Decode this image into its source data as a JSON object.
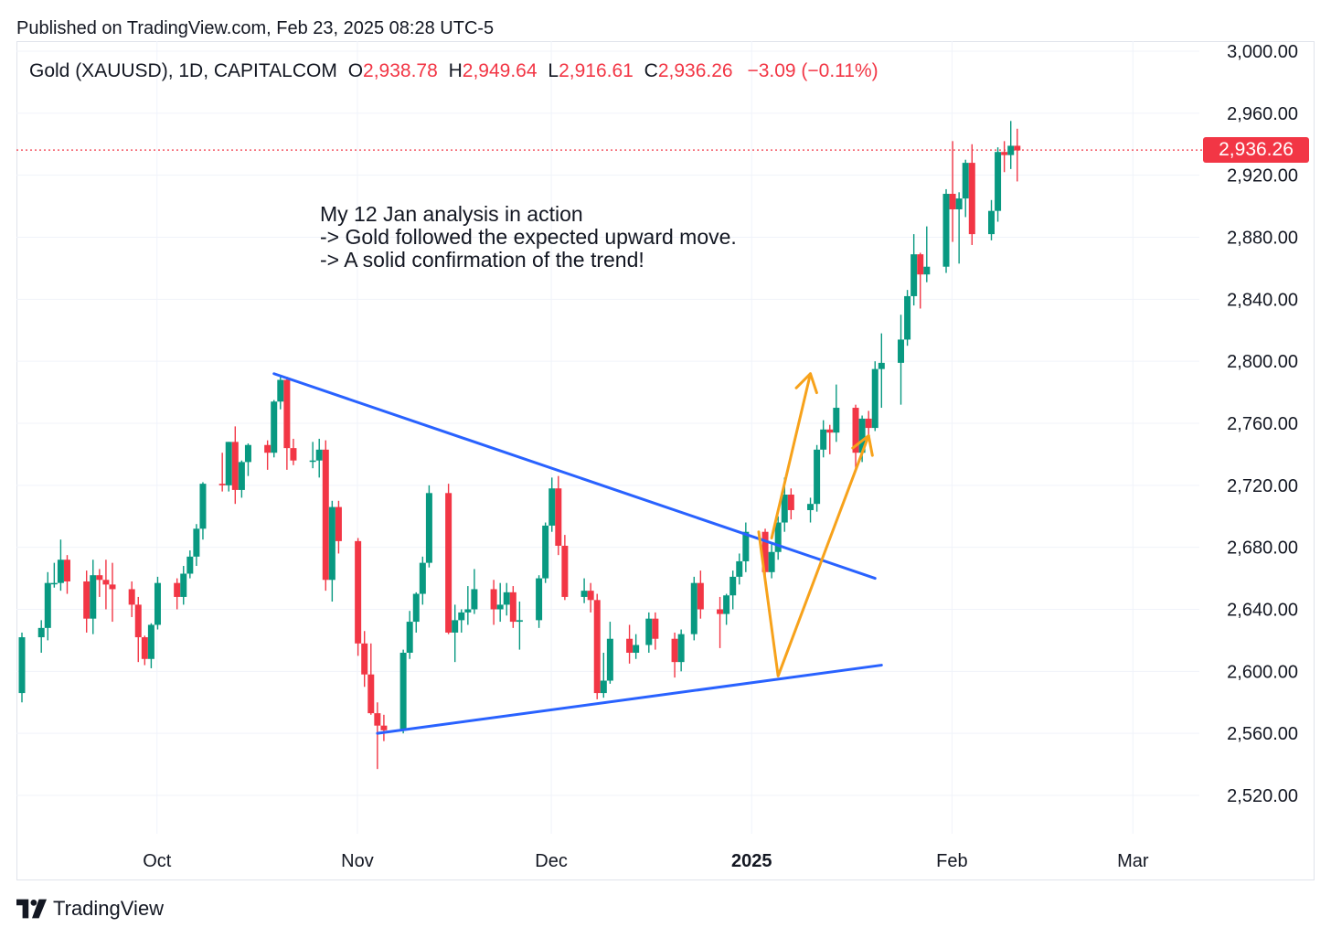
{
  "header": {
    "published": "Published on TradingView.com, Feb 23, 2025 08:28 UTC-5"
  },
  "legend": {
    "symbol": "Gold (XAUUSD), 1D, CAPITALCOM",
    "open_key": "O",
    "open": "2,938.78",
    "high_key": "H",
    "high": "2,949.64",
    "low_key": "L",
    "low": "2,916.61",
    "close_key": "C",
    "close": "2,936.26",
    "change": "−3.09 (−0.11%)"
  },
  "annotation": {
    "line1": "My 12 Jan analysis in action",
    "line2": "-> Gold followed the expected upward move.",
    "line3": "-> A solid confirmation of the trend!"
  },
  "footer": {
    "brand": "TradingView"
  },
  "colors": {
    "up": "#089981",
    "down": "#f23645",
    "trendline": "#2962ff",
    "arrow": "#f7a21b",
    "grid": "#f0f3fa"
  },
  "chart_data": {
    "type": "candlestick",
    "last_price": 2936.26,
    "last_price_label": "2,936.26",
    "y_axis": {
      "range": [
        2500,
        3000
      ],
      "ticks": [
        2520,
        2560,
        2600,
        2640,
        2680,
        2720,
        2760,
        2800,
        2840,
        2880,
        2920,
        2960,
        3000
      ],
      "tick_labels": [
        "2,520.00",
        "2,560.00",
        "2,600.00",
        "2,640.00",
        "2,680.00",
        "2,720.00",
        "2,760.00",
        "2,800.00",
        "2,840.00",
        "2,880.00",
        "2,920.00",
        "2,960.00",
        "3,000.00"
      ]
    },
    "x_axis": {
      "range": [
        "2024-09-20",
        "2025-03-18"
      ],
      "ticks": [
        {
          "date": "2024-10-01",
          "label": "Oct",
          "bold": false
        },
        {
          "date": "2024-11-01",
          "label": "Nov",
          "bold": false
        },
        {
          "date": "2024-12-01",
          "label": "Dec",
          "bold": false
        },
        {
          "date": "2025-01-01",
          "label": "2025",
          "bold": true
        },
        {
          "date": "2025-02-01",
          "label": "Feb",
          "bold": false
        },
        {
          "date": "2025-03-01",
          "label": "Mar",
          "bold": false
        }
      ]
    },
    "grid": true,
    "candles": [
      {
        "date": "2024-09-20",
        "o": 2586,
        "h": 2625,
        "l": 2580,
        "c": 2622
      },
      {
        "date": "2024-09-23",
        "o": 2622,
        "h": 2633,
        "l": 2612,
        "c": 2628
      },
      {
        "date": "2024-09-24",
        "o": 2628,
        "h": 2664,
        "l": 2620,
        "c": 2657
      },
      {
        "date": "2024-09-25",
        "o": 2657,
        "h": 2670,
        "l": 2654,
        "c": 2657
      },
      {
        "date": "2024-09-26",
        "o": 2657,
        "h": 2685,
        "l": 2652,
        "c": 2672
      },
      {
        "date": "2024-09-27",
        "o": 2672,
        "h": 2675,
        "l": 2650,
        "c": 2658
      },
      {
        "date": "2024-09-30",
        "o": 2658,
        "h": 2665,
        "l": 2625,
        "c": 2634
      },
      {
        "date": "2024-10-01",
        "o": 2634,
        "h": 2672,
        "l": 2624,
        "c": 2662
      },
      {
        "date": "2024-10-02",
        "o": 2662,
        "h": 2666,
        "l": 2648,
        "c": 2659
      },
      {
        "date": "2024-10-03",
        "o": 2659,
        "h": 2672,
        "l": 2640,
        "c": 2656
      },
      {
        "date": "2024-10-04",
        "o": 2656,
        "h": 2670,
        "l": 2632,
        "c": 2653
      },
      {
        "date": "2024-10-07",
        "o": 2653,
        "h": 2658,
        "l": 2635,
        "c": 2643
      },
      {
        "date": "2024-10-08",
        "o": 2643,
        "h": 2648,
        "l": 2606,
        "c": 2622
      },
      {
        "date": "2024-10-09",
        "o": 2622,
        "h": 2623,
        "l": 2604,
        "c": 2608
      },
      {
        "date": "2024-10-10",
        "o": 2608,
        "h": 2631,
        "l": 2602,
        "c": 2630
      },
      {
        "date": "2024-10-11",
        "o": 2630,
        "h": 2661,
        "l": 2627,
        "c": 2657
      },
      {
        "date": "2024-10-14",
        "o": 2657,
        "h": 2660,
        "l": 2640,
        "c": 2648
      },
      {
        "date": "2024-10-15",
        "o": 2648,
        "h": 2668,
        "l": 2643,
        "c": 2663
      },
      {
        "date": "2024-10-16",
        "o": 2663,
        "h": 2678,
        "l": 2660,
        "c": 2674
      },
      {
        "date": "2024-10-17",
        "o": 2674,
        "h": 2695,
        "l": 2668,
        "c": 2692
      },
      {
        "date": "2024-10-18",
        "o": 2692,
        "h": 2722,
        "l": 2685,
        "c": 2721
      },
      {
        "date": "2024-10-21",
        "o": 2721,
        "h": 2741,
        "l": 2716,
        "c": 2720
      },
      {
        "date": "2024-10-22",
        "o": 2720,
        "h": 2748,
        "l": 2716,
        "c": 2748
      },
      {
        "date": "2024-10-23",
        "o": 2748,
        "h": 2758,
        "l": 2708,
        "c": 2717
      },
      {
        "date": "2024-10-24",
        "o": 2717,
        "h": 2736,
        "l": 2712,
        "c": 2735
      },
      {
        "date": "2024-10-25",
        "o": 2735,
        "h": 2747,
        "l": 2726,
        "c": 2746
      },
      {
        "date": "2024-10-28",
        "o": 2746,
        "h": 2749,
        "l": 2730,
        "c": 2741
      },
      {
        "date": "2024-10-29",
        "o": 2741,
        "h": 2775,
        "l": 2738,
        "c": 2774
      },
      {
        "date": "2024-10-30",
        "o": 2774,
        "h": 2790,
        "l": 2769,
        "c": 2788
      },
      {
        "date": "2024-10-31",
        "o": 2788,
        "h": 2790,
        "l": 2730,
        "c": 2744
      },
      {
        "date": "2024-11-01",
        "o": 2744,
        "h": 2750,
        "l": 2733,
        "c": 2736
      },
      {
        "date": "2024-11-04",
        "o": 2736,
        "h": 2748,
        "l": 2731,
        "c": 2736
      },
      {
        "date": "2024-11-05",
        "o": 2736,
        "h": 2750,
        "l": 2725,
        "c": 2743
      },
      {
        "date": "2024-11-06",
        "o": 2743,
        "h": 2749,
        "l": 2652,
        "c": 2659
      },
      {
        "date": "2024-11-07",
        "o": 2659,
        "h": 2710,
        "l": 2645,
        "c": 2706
      },
      {
        "date": "2024-11-08",
        "o": 2706,
        "h": 2710,
        "l": 2676,
        "c": 2684
      },
      {
        "date": "2024-11-11",
        "o": 2684,
        "h": 2686,
        "l": 2610,
        "c": 2618
      },
      {
        "date": "2024-11-12",
        "o": 2618,
        "h": 2626,
        "l": 2590,
        "c": 2598
      },
      {
        "date": "2024-11-13",
        "o": 2598,
        "h": 2618,
        "l": 2572,
        "c": 2573
      },
      {
        "date": "2024-11-14",
        "o": 2573,
        "h": 2580,
        "l": 2537,
        "c": 2565
      },
      {
        "date": "2024-11-15",
        "o": 2565,
        "h": 2572,
        "l": 2555,
        "c": 2562
      },
      {
        "date": "2024-11-18",
        "o": 2562,
        "h": 2614,
        "l": 2560,
        "c": 2612
      },
      {
        "date": "2024-11-19",
        "o": 2612,
        "h": 2639,
        "l": 2608,
        "c": 2632
      },
      {
        "date": "2024-11-20",
        "o": 2632,
        "h": 2651,
        "l": 2625,
        "c": 2650
      },
      {
        "date": "2024-11-21",
        "o": 2650,
        "h": 2674,
        "l": 2643,
        "c": 2670
      },
      {
        "date": "2024-11-22",
        "o": 2670,
        "h": 2720,
        "l": 2667,
        "c": 2715
      },
      {
        "date": "2024-11-25",
        "o": 2715,
        "h": 2721,
        "l": 2624,
        "c": 2625
      },
      {
        "date": "2024-11-26",
        "o": 2625,
        "h": 2643,
        "l": 2606,
        "c": 2633
      },
      {
        "date": "2024-11-27",
        "o": 2633,
        "h": 2640,
        "l": 2625,
        "c": 2638
      },
      {
        "date": "2024-11-28",
        "o": 2638,
        "h": 2655,
        "l": 2630,
        "c": 2640
      },
      {
        "date": "2024-11-29",
        "o": 2640,
        "h": 2666,
        "l": 2637,
        "c": 2653
      },
      {
        "date": "2024-12-02",
        "o": 2653,
        "h": 2659,
        "l": 2630,
        "c": 2640
      },
      {
        "date": "2024-12-03",
        "o": 2640,
        "h": 2657,
        "l": 2632,
        "c": 2643
      },
      {
        "date": "2024-12-04",
        "o": 2643,
        "h": 2657,
        "l": 2636,
        "c": 2651
      },
      {
        "date": "2024-12-05",
        "o": 2651,
        "h": 2655,
        "l": 2628,
        "c": 2632
      },
      {
        "date": "2024-12-06",
        "o": 2632,
        "h": 2645,
        "l": 2614,
        "c": 2633
      },
      {
        "date": "2024-12-09",
        "o": 2633,
        "h": 2662,
        "l": 2628,
        "c": 2660
      },
      {
        "date": "2024-12-10",
        "o": 2660,
        "h": 2696,
        "l": 2657,
        "c": 2694
      },
      {
        "date": "2024-12-11",
        "o": 2694,
        "h": 2725,
        "l": 2690,
        "c": 2718
      },
      {
        "date": "2024-12-12",
        "o": 2718,
        "h": 2726,
        "l": 2675,
        "c": 2681
      },
      {
        "date": "2024-12-13",
        "o": 2681,
        "h": 2688,
        "l": 2646,
        "c": 2648
      },
      {
        "date": "2024-12-16",
        "o": 2648,
        "h": 2660,
        "l": 2644,
        "c": 2652
      },
      {
        "date": "2024-12-17",
        "o": 2652,
        "h": 2657,
        "l": 2638,
        "c": 2646
      },
      {
        "date": "2024-12-18",
        "o": 2646,
        "h": 2650,
        "l": 2582,
        "c": 2586
      },
      {
        "date": "2024-12-19",
        "o": 2586,
        "h": 2612,
        "l": 2583,
        "c": 2594
      },
      {
        "date": "2024-12-20",
        "o": 2594,
        "h": 2632,
        "l": 2592,
        "c": 2621
      },
      {
        "date": "2024-12-23",
        "o": 2621,
        "h": 2630,
        "l": 2605,
        "c": 2612
      },
      {
        "date": "2024-12-24",
        "o": 2612,
        "h": 2624,
        "l": 2608,
        "c": 2617
      },
      {
        "date": "2024-12-26",
        "o": 2617,
        "h": 2638,
        "l": 2612,
        "c": 2634
      },
      {
        "date": "2024-12-27",
        "o": 2634,
        "h": 2638,
        "l": 2614,
        "c": 2621
      },
      {
        "date": "2024-12-30",
        "o": 2621,
        "h": 2625,
        "l": 2596,
        "c": 2606
      },
      {
        "date": "2024-12-31",
        "o": 2606,
        "h": 2627,
        "l": 2600,
        "c": 2624
      },
      {
        "date": "2025-01-02",
        "o": 2624,
        "h": 2661,
        "l": 2620,
        "c": 2657
      },
      {
        "date": "2025-01-03",
        "o": 2657,
        "h": 2665,
        "l": 2634,
        "c": 2640
      },
      {
        "date": "2025-01-06",
        "o": 2640,
        "h": 2648,
        "l": 2615,
        "c": 2637
      },
      {
        "date": "2025-01-07",
        "o": 2637,
        "h": 2650,
        "l": 2630,
        "c": 2649
      },
      {
        "date": "2025-01-08",
        "o": 2649,
        "h": 2665,
        "l": 2640,
        "c": 2661
      },
      {
        "date": "2025-01-09",
        "o": 2661,
        "h": 2676,
        "l": 2656,
        "c": 2671
      },
      {
        "date": "2025-01-10",
        "o": 2671,
        "h": 2696,
        "l": 2664,
        "c": 2690
      },
      {
        "date": "2025-01-13",
        "o": 2690,
        "h": 2692,
        "l": 2657,
        "c": 2664
      },
      {
        "date": "2025-01-14",
        "o": 2664,
        "h": 2682,
        "l": 2660,
        "c": 2677
      },
      {
        "date": "2025-01-15",
        "o": 2677,
        "h": 2700,
        "l": 2672,
        "c": 2696
      },
      {
        "date": "2025-01-16",
        "o": 2696,
        "h": 2725,
        "l": 2690,
        "c": 2714
      },
      {
        "date": "2025-01-17",
        "o": 2714,
        "h": 2718,
        "l": 2698,
        "c": 2704
      },
      {
        "date": "2025-01-20",
        "o": 2704,
        "h": 2712,
        "l": 2696,
        "c": 2708
      },
      {
        "date": "2025-01-21",
        "o": 2708,
        "h": 2746,
        "l": 2703,
        "c": 2743
      },
      {
        "date": "2025-01-22",
        "o": 2743,
        "h": 2762,
        "l": 2738,
        "c": 2756
      },
      {
        "date": "2025-01-23",
        "o": 2756,
        "h": 2759,
        "l": 2740,
        "c": 2754
      },
      {
        "date": "2025-01-24",
        "o": 2754,
        "h": 2785,
        "l": 2748,
        "c": 2770
      },
      {
        "date": "2025-01-27",
        "o": 2770,
        "h": 2772,
        "l": 2730,
        "c": 2741
      },
      {
        "date": "2025-01-28",
        "o": 2741,
        "h": 2765,
        "l": 2735,
        "c": 2763
      },
      {
        "date": "2025-01-29",
        "o": 2763,
        "h": 2768,
        "l": 2752,
        "c": 2757
      },
      {
        "date": "2025-01-30",
        "o": 2757,
        "h": 2800,
        "l": 2755,
        "c": 2795
      },
      {
        "date": "2025-01-31",
        "o": 2795,
        "h": 2818,
        "l": 2770,
        "c": 2799
      },
      {
        "date": "2025-02-03",
        "o": 2799,
        "h": 2830,
        "l": 2772,
        "c": 2814
      },
      {
        "date": "2025-02-04",
        "o": 2814,
        "h": 2846,
        "l": 2810,
        "c": 2842
      },
      {
        "date": "2025-02-05",
        "o": 2842,
        "h": 2882,
        "l": 2836,
        "c": 2869
      },
      {
        "date": "2025-02-06",
        "o": 2869,
        "h": 2870,
        "l": 2834,
        "c": 2856
      },
      {
        "date": "2025-02-07",
        "o": 2856,
        "h": 2887,
        "l": 2851,
        "c": 2861
      },
      {
        "date": "2025-02-10",
        "o": 2861,
        "h": 2911,
        "l": 2857,
        "c": 2908
      },
      {
        "date": "2025-02-11",
        "o": 2908,
        "h": 2942,
        "l": 2877,
        "c": 2898
      },
      {
        "date": "2025-02-12",
        "o": 2898,
        "h": 2909,
        "l": 2863,
        "c": 2905
      },
      {
        "date": "2025-02-13",
        "o": 2905,
        "h": 2930,
        "l": 2893,
        "c": 2928
      },
      {
        "date": "2025-02-14",
        "o": 2928,
        "h": 2940,
        "l": 2875,
        "c": 2882
      },
      {
        "date": "2025-02-17",
        "o": 2882,
        "h": 2904,
        "l": 2878,
        "c": 2897
      },
      {
        "date": "2025-02-18",
        "o": 2897,
        "h": 2938,
        "l": 2890,
        "c": 2935
      },
      {
        "date": "2025-02-19",
        "o": 2935,
        "h": 2942,
        "l": 2922,
        "c": 2933
      },
      {
        "date": "2025-02-20",
        "o": 2933,
        "h": 2955,
        "l": 2924,
        "c": 2939
      },
      {
        "date": "2025-02-21",
        "o": 2939,
        "h": 2950,
        "l": 2916,
        "c": 2936
      }
    ],
    "trendlines": [
      {
        "role": "upper",
        "from": {
          "date": "2024-10-29",
          "price": 2792
        },
        "to": {
          "date": "2025-01-30",
          "price": 2660
        }
      },
      {
        "role": "lower",
        "from": {
          "date": "2024-11-14",
          "price": 2560
        },
        "to": {
          "date": "2025-01-31",
          "price": 2604
        }
      }
    ],
    "arrows": [
      {
        "points": [
          {
            "date": "2025-01-12",
            "price": 2690
          },
          {
            "date": "2025-01-15",
            "price": 2597
          },
          {
            "date": "2025-01-29",
            "price": 2752
          }
        ]
      },
      {
        "points": [
          {
            "date": "2025-01-14",
            "price": 2686
          },
          {
            "date": "2025-01-20",
            "price": 2792
          }
        ]
      }
    ]
  }
}
